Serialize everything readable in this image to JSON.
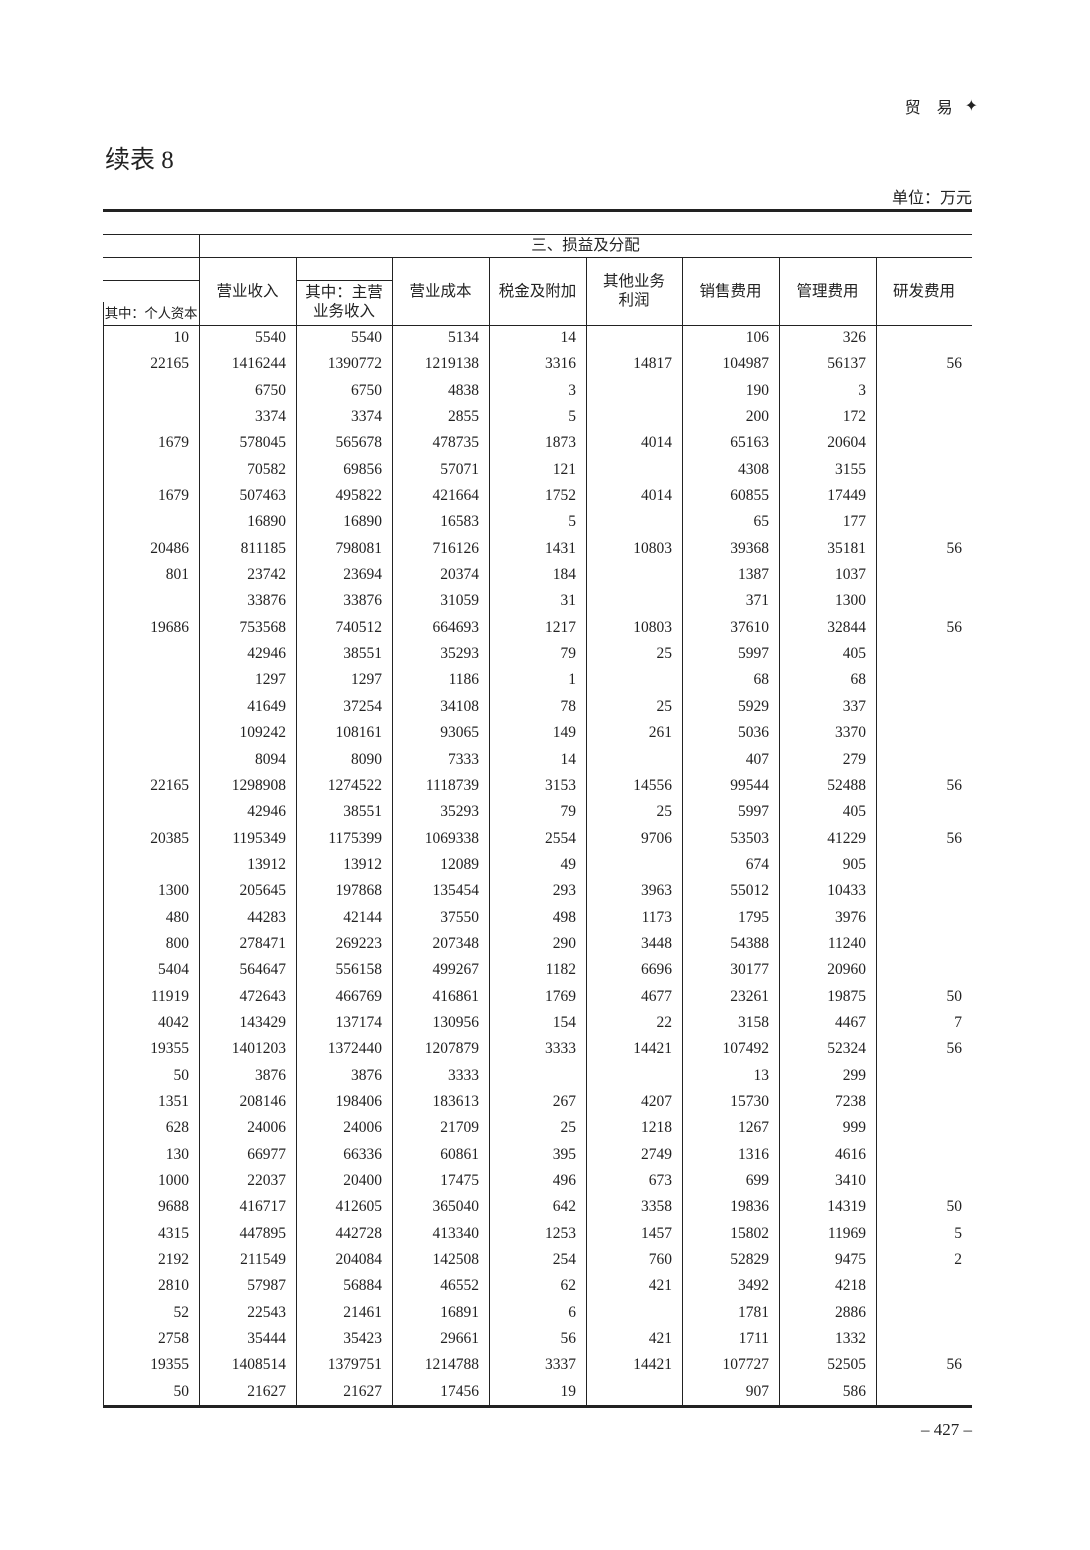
{
  "running_head": "贸 易",
  "title": "续表 8",
  "unit": "单位：万元",
  "page_number": "– 427 –",
  "table": {
    "group_header": "三、损益及分配",
    "col0_header": "其中：个人资本",
    "headers": [
      "营业收入",
      "其中：主营\n业务收入",
      "营业成本",
      "税金及附加",
      "其他业务\n利润",
      "销售费用",
      "管理费用",
      "研发费用"
    ],
    "rows": [
      [
        "10",
        "5540",
        "5540",
        "5134",
        "14",
        "",
        "106",
        "326",
        ""
      ],
      [
        "22165",
        "1416244",
        "1390772",
        "1219138",
        "3316",
        "14817",
        "104987",
        "56137",
        "56"
      ],
      [
        "",
        "6750",
        "6750",
        "4838",
        "3",
        "",
        "190",
        "3",
        ""
      ],
      [
        "",
        "3374",
        "3374",
        "2855",
        "5",
        "",
        "200",
        "172",
        ""
      ],
      [
        "1679",
        "578045",
        "565678",
        "478735",
        "1873",
        "4014",
        "65163",
        "20604",
        ""
      ],
      [
        "",
        "70582",
        "69856",
        "57071",
        "121",
        "",
        "4308",
        "3155",
        ""
      ],
      [
        "1679",
        "507463",
        "495822",
        "421664",
        "1752",
        "4014",
        "60855",
        "17449",
        ""
      ],
      [
        "",
        "16890",
        "16890",
        "16583",
        "5",
        "",
        "65",
        "177",
        ""
      ],
      [
        "20486",
        "811185",
        "798081",
        "716126",
        "1431",
        "10803",
        "39368",
        "35181",
        "56"
      ],
      [
        "801",
        "23742",
        "23694",
        "20374",
        "184",
        "",
        "1387",
        "1037",
        ""
      ],
      [
        "",
        "33876",
        "33876",
        "31059",
        "31",
        "",
        "371",
        "1300",
        ""
      ],
      [
        "19686",
        "753568",
        "740512",
        "664693",
        "1217",
        "10803",
        "37610",
        "32844",
        "56"
      ],
      [
        "",
        "42946",
        "38551",
        "35293",
        "79",
        "25",
        "5997",
        "405",
        ""
      ],
      [
        "",
        "1297",
        "1297",
        "1186",
        "1",
        "",
        "68",
        "68",
        ""
      ],
      [
        "",
        "41649",
        "37254",
        "34108",
        "78",
        "25",
        "5929",
        "337",
        ""
      ],
      [
        "",
        "109242",
        "108161",
        "93065",
        "149",
        "261",
        "5036",
        "3370",
        ""
      ],
      [
        "",
        "8094",
        "8090",
        "7333",
        "14",
        "",
        "407",
        "279",
        ""
      ],
      [
        "22165",
        "1298908",
        "1274522",
        "1118739",
        "3153",
        "14556",
        "99544",
        "52488",
        "56"
      ],
      [
        "",
        "42946",
        "38551",
        "35293",
        "79",
        "25",
        "5997",
        "405",
        ""
      ],
      [
        "20385",
        "1195349",
        "1175399",
        "1069338",
        "2554",
        "9706",
        "53503",
        "41229",
        "56"
      ],
      [
        "",
        "13912",
        "13912",
        "12089",
        "49",
        "",
        "674",
        "905",
        ""
      ],
      [
        "1300",
        "205645",
        "197868",
        "135454",
        "293",
        "3963",
        "55012",
        "10433",
        ""
      ],
      [
        "480",
        "44283",
        "42144",
        "37550",
        "498",
        "1173",
        "1795",
        "3976",
        ""
      ],
      [
        "800",
        "278471",
        "269223",
        "207348",
        "290",
        "3448",
        "54388",
        "11240",
        ""
      ],
      [
        "5404",
        "564647",
        "556158",
        "499267",
        "1182",
        "6696",
        "30177",
        "20960",
        ""
      ],
      [
        "11919",
        "472643",
        "466769",
        "416861",
        "1769",
        "4677",
        "23261",
        "19875",
        "50"
      ],
      [
        "4042",
        "143429",
        "137174",
        "130956",
        "154",
        "22",
        "3158",
        "4467",
        "7"
      ],
      [
        "19355",
        "1401203",
        "1372440",
        "1207879",
        "3333",
        "14421",
        "107492",
        "52324",
        "56"
      ],
      [
        "50",
        "3876",
        "3876",
        "3333",
        "",
        "",
        "13",
        "299",
        ""
      ],
      [
        "1351",
        "208146",
        "198406",
        "183613",
        "267",
        "4207",
        "15730",
        "7238",
        ""
      ],
      [
        "628",
        "24006",
        "24006",
        "21709",
        "25",
        "1218",
        "1267",
        "999",
        ""
      ],
      [
        "130",
        "66977",
        "66336",
        "60861",
        "395",
        "2749",
        "1316",
        "4616",
        ""
      ],
      [
        "1000",
        "22037",
        "20400",
        "17475",
        "496",
        "673",
        "699",
        "3410",
        ""
      ],
      [
        "9688",
        "416717",
        "412605",
        "365040",
        "642",
        "3358",
        "19836",
        "14319",
        "50"
      ],
      [
        "4315",
        "447895",
        "442728",
        "413340",
        "1253",
        "1457",
        "15802",
        "11969",
        "5"
      ],
      [
        "2192",
        "211549",
        "204084",
        "142508",
        "254",
        "760",
        "52829",
        "9475",
        "2"
      ],
      [
        "2810",
        "57987",
        "56884",
        "46552",
        "62",
        "421",
        "3492",
        "4218",
        ""
      ],
      [
        "52",
        "22543",
        "21461",
        "16891",
        "6",
        "",
        "1781",
        "2886",
        ""
      ],
      [
        "2758",
        "35444",
        "35423",
        "29661",
        "56",
        "421",
        "1711",
        "1332",
        ""
      ],
      [
        "19355",
        "1408514",
        "1379751",
        "1214788",
        "3337",
        "14421",
        "107727",
        "52505",
        "56"
      ],
      [
        "50",
        "21627",
        "21627",
        "17456",
        "19",
        "",
        "907",
        "586",
        ""
      ]
    ]
  }
}
